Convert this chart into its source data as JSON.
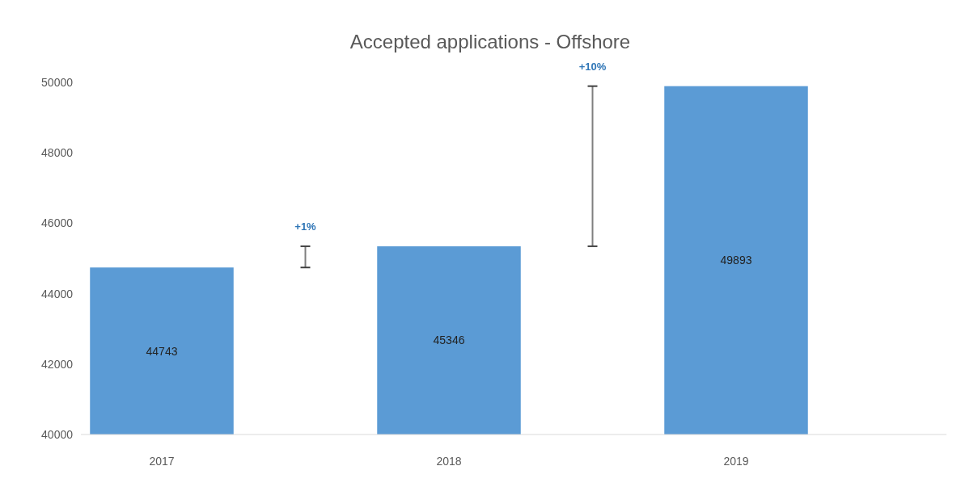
{
  "chart_data": {
    "type": "bar",
    "title": "Accepted applications - Offshore",
    "categories": [
      "2017",
      "2018",
      "2019"
    ],
    "values": [
      44743,
      45346,
      49893
    ],
    "color": "#5b9bd5",
    "ylim": [
      40000,
      50000
    ],
    "yticks": [
      40000,
      42000,
      44000,
      46000,
      48000,
      50000
    ],
    "data_labels": true,
    "grid": false,
    "annotations": [
      "+1%",
      "+10%"
    ]
  }
}
